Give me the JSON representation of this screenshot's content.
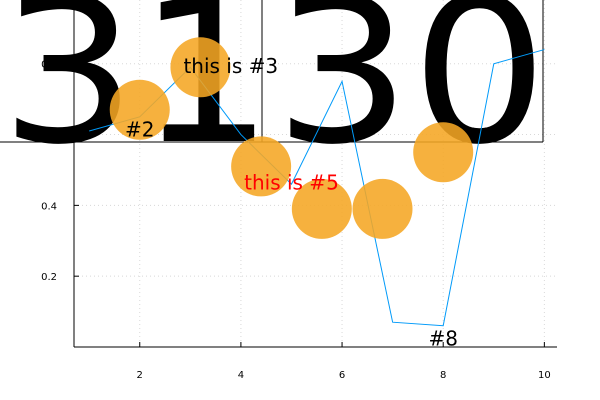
{
  "chart_data": {
    "type": "line",
    "title": "",
    "xlabel": "",
    "ylabel": "",
    "xlim": [
      0.7,
      10.25
    ],
    "ylim": [
      0.0,
      0.98
    ],
    "grid": true,
    "legend": "none",
    "x_ticks": [
      2,
      4,
      6,
      8,
      10
    ],
    "y_ticks": [
      0.2,
      0.4,
      0.6,
      0.8
    ],
    "x_tick_labels": [
      "2",
      "4",
      "6",
      "8",
      "10"
    ],
    "y_tick_labels": [
      "0.2",
      "0.4",
      "0.6",
      "0.8"
    ],
    "series": [
      {
        "x": [
          1,
          2,
          3,
          4,
          5,
          6,
          7,
          8,
          9,
          10
        ],
        "y": [
          0.61,
          0.65,
          0.79,
          0.6,
          0.46,
          0.75,
          0.07,
          0.06,
          0.8,
          0.84
        ],
        "color": "#009af9"
      }
    ],
    "markers": {
      "color": "#f5a623",
      "points": [
        {
          "x": 2.0,
          "y": 0.67
        },
        {
          "x": 3.2,
          "y": 0.79
        },
        {
          "x": 4.4,
          "y": 0.51
        },
        {
          "x": 5.6,
          "y": 0.39
        },
        {
          "x": 6.8,
          "y": 0.39
        },
        {
          "x": 8.0,
          "y": 0.55
        }
      ]
    },
    "annotations": [
      {
        "text": "#2",
        "x": 2.0,
        "y": 0.61,
        "color": "#000000"
      },
      {
        "text": "this is #3",
        "x": 3.8,
        "y": 0.79,
        "color": "#000000"
      },
      {
        "text": "this is #5",
        "x": 5.0,
        "y": 0.46,
        "color": "#ff0000"
      },
      {
        "text": "#8",
        "x": 8.0,
        "y": 0.02,
        "color": "#000000"
      }
    ],
    "big_text": "3130"
  }
}
